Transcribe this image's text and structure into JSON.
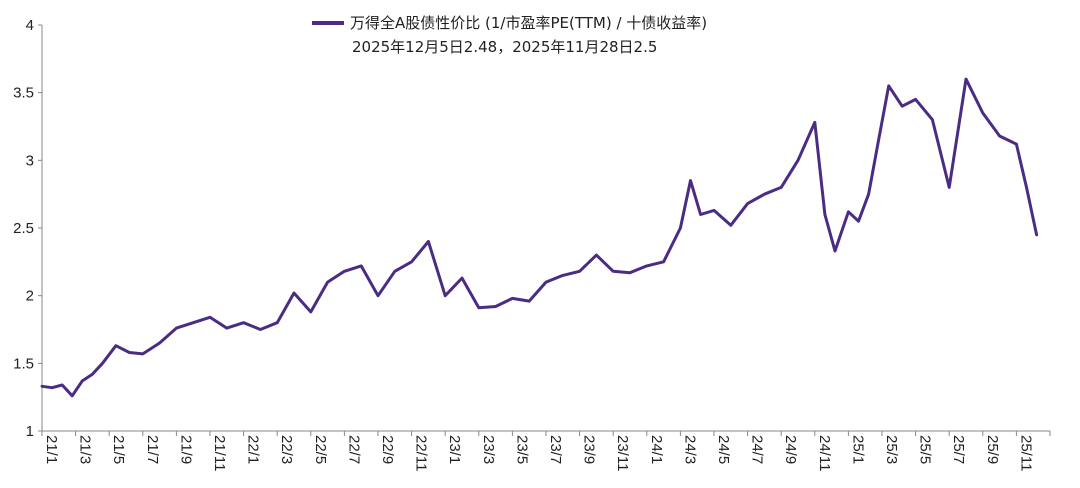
{
  "chart_data": {
    "type": "line",
    "title": "",
    "xlabel": "",
    "ylabel": "",
    "ylim": [
      1,
      4
    ],
    "yticks": [
      "1",
      "1.5",
      "2",
      "2.5",
      "3",
      "3.5",
      "4"
    ],
    "xtick_labels": [
      "21/1",
      "21/3",
      "21/5",
      "21/7",
      "21/9",
      "21/11",
      "22/1",
      "22/3",
      "22/5",
      "22/7",
      "22/9",
      "22/11",
      "23/1",
      "23/3",
      "23/5",
      "23/7",
      "23/9",
      "23/11",
      "24/1",
      "24/3",
      "24/5",
      "24/7",
      "24/9",
      "24/11",
      "25/1",
      "25/3",
      "25/5",
      "25/7",
      "25/9",
      "25/11"
    ],
    "grid": false,
    "legend_position": "top-center",
    "legend_note": "2025年12月5日2.48，2025年11月28日2.5",
    "series": [
      {
        "name": "万得全A股债性价比 (1/市盈率PE(TTM) / 十债收益率)",
        "color": "#4b2c84",
        "x": [
          0,
          0.3,
          0.6,
          0.9,
          1.2,
          1.5,
          1.8,
          2.2,
          2.6,
          3.0,
          3.5,
          4.0,
          4.5,
          5.0,
          5.5,
          6.0,
          6.5,
          7.0,
          7.5,
          8.0,
          8.5,
          9.0,
          9.5,
          10.0,
          10.5,
          11.0,
          11.5,
          12.0,
          12.5,
          13.0,
          13.5,
          14.0,
          14.5,
          15.0,
          15.5,
          16.0,
          16.5,
          17.0,
          17.5,
          18.0,
          18.5,
          18.8,
          19.0,
          19.3,
          19.6,
          20.0,
          20.5,
          21.0,
          21.5,
          22.0,
          22.5,
          23.0,
          23.3,
          23.6,
          24.0,
          24.3,
          24.6,
          24.9,
          25.2,
          25.6,
          26.0,
          26.5,
          27.0,
          27.5,
          28.0,
          28.5,
          29.0,
          29.3,
          29.6
        ],
        "values": [
          1.33,
          1.32,
          1.34,
          1.26,
          1.37,
          1.42,
          1.5,
          1.63,
          1.58,
          1.57,
          1.65,
          1.76,
          1.8,
          1.84,
          1.76,
          1.8,
          1.75,
          1.8,
          2.02,
          1.88,
          2.1,
          2.18,
          2.22,
          2.0,
          2.18,
          2.25,
          2.4,
          2.0,
          2.13,
          1.91,
          1.92,
          1.98,
          1.96,
          2.1,
          2.15,
          2.18,
          2.3,
          2.18,
          2.17,
          2.22,
          2.25,
          2.4,
          2.5,
          2.85,
          2.6,
          2.63,
          2.52,
          2.68,
          2.75,
          2.8,
          3.0,
          3.28,
          2.6,
          2.33,
          2.62,
          2.55,
          2.75,
          3.15,
          3.55,
          3.4,
          3.45,
          3.3,
          2.8,
          3.6,
          3.35,
          3.18,
          3.12,
          2.8,
          2.45
        ]
      }
    ]
  }
}
